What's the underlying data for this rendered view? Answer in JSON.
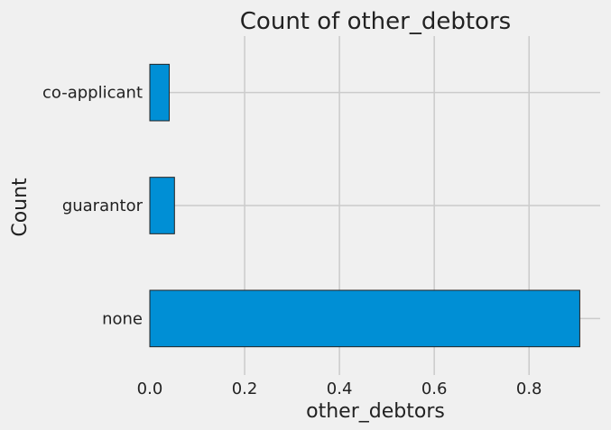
{
  "chart_data": {
    "type": "bar",
    "orientation": "horizontal",
    "title": "Count of other_debtors",
    "xlabel": "other_debtors",
    "ylabel": "Count",
    "categories": [
      "none",
      "guarantor",
      "co-applicant"
    ],
    "values": [
      0.907,
      0.052,
      0.041
    ],
    "xlim": [
      0,
      0.95
    ],
    "xticks": [
      "0.0",
      "0.2",
      "0.4",
      "0.6",
      "0.8"
    ],
    "grid": true,
    "bar_color": "#008fd5",
    "edge_color": "#222222",
    "background_color": "#f0f0f0",
    "grid_color": "#cbcbcb"
  }
}
